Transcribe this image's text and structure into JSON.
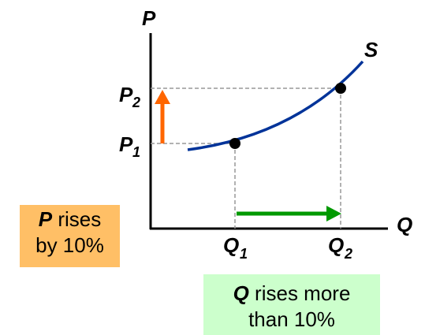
{
  "axes": {
    "y_label": "P",
    "x_label": "Q",
    "curve_label": "S"
  },
  "prices": {
    "p1_main": "P",
    "p1_sub": "1",
    "p2_main": "P",
    "p2_sub": "2"
  },
  "quantities": {
    "q1_main": "Q",
    "q1_sub": "1",
    "q2_main": "Q",
    "q2_sub": "2"
  },
  "price_note": {
    "bold": "P",
    "rest_line1": " rises",
    "line2": "by 10%"
  },
  "quantity_note": {
    "bold": "Q",
    "rest_line1": " rises more",
    "line2": "than 10%"
  },
  "colors": {
    "curve": "#003399",
    "price_arrow": "#ff6600",
    "quantity_arrow": "#009900",
    "price_note_bg": "#ffbf66",
    "quantity_note_bg": "#ccffcc"
  }
}
